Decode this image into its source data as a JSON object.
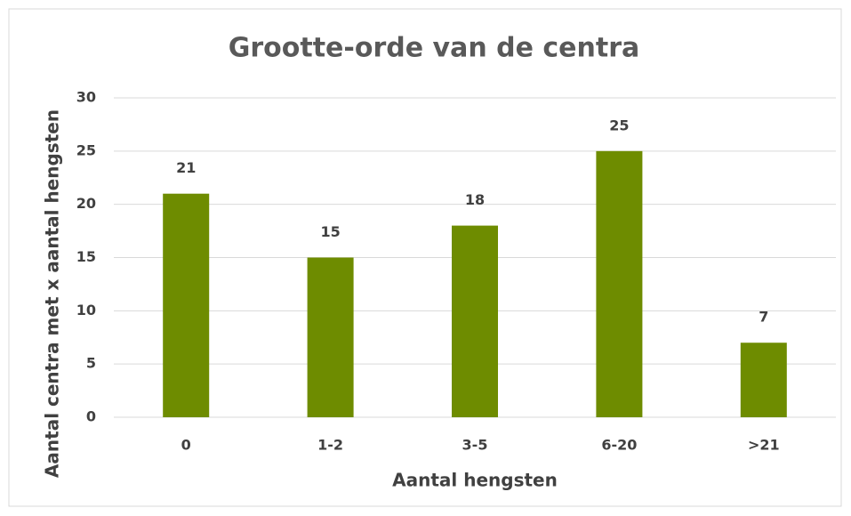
{
  "chart_data": {
    "type": "bar",
    "title": "Grootte-orde van de centra",
    "x_label": "Aantal hengsten",
    "y_label": "Aantal centra met x aantal hengsten",
    "categories": [
      "0",
      "1-2",
      "3-5",
      "6-20",
      ">21"
    ],
    "values": [
      21,
      15,
      18,
      25,
      7
    ],
    "color": "#6e8c00",
    "ylim": [
      0,
      30
    ],
    "yticks": [
      0,
      5,
      10,
      15,
      20,
      25,
      30
    ],
    "grid": true
  }
}
